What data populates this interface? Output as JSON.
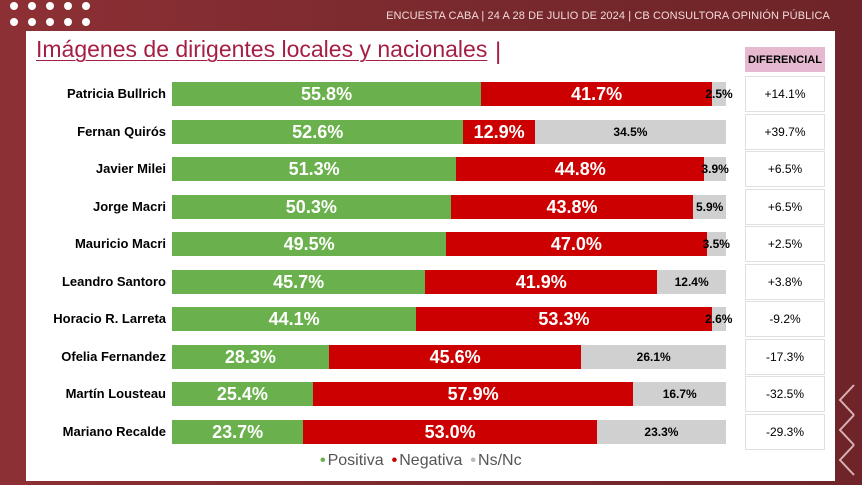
{
  "header": {
    "source": "ENCUESTA CABA  | 24 A 28 DE JULIO DE  2024 | CB CONSULTORA OPINIÓN PÚBLICA"
  },
  "colors": {
    "positiva": "#6ab04c",
    "negativa": "#cc0000",
    "nsnc": "#d0d0d0",
    "title": "#a51f45",
    "diff_header_bg": "#e6b9d0"
  },
  "legend": {
    "positiva": "Positiva",
    "negativa": "Negativa",
    "nsnc": "Ns/Nc"
  },
  "chart_data": {
    "type": "bar",
    "stacked": true,
    "orientation": "horizontal",
    "title": "Imágenes de dirigentes locales y nacionales",
    "categories": [
      "Patricia Bullrich",
      "Fernan Quirós",
      "Javier Milei",
      "Jorge Macri",
      "Mauricio Macri",
      "Leandro Santoro",
      "Horacio R. Larreta",
      "Ofelia Fernandez",
      "Martín Lousteau",
      "Mariano Recalde"
    ],
    "series": [
      {
        "name": "Positiva",
        "values": [
          55.8,
          52.6,
          51.3,
          50.3,
          49.5,
          45.7,
          44.1,
          28.3,
          25.4,
          23.7
        ]
      },
      {
        "name": "Negativa",
        "values": [
          41.7,
          12.9,
          44.8,
          43.8,
          47.0,
          41.9,
          53.3,
          45.6,
          57.9,
          53.0
        ]
      },
      {
        "name": "Ns/Nc",
        "values": [
          2.5,
          34.5,
          3.9,
          5.9,
          3.5,
          12.4,
          2.6,
          26.1,
          16.7,
          23.3
        ]
      }
    ],
    "value_labels": {
      "Positiva": [
        "55.8%",
        "52.6%",
        "51.3%",
        "50.3%",
        "49.5%",
        "45.7%",
        "44.1%",
        "28.3%",
        "25.4%",
        "23.7%"
      ],
      "Negativa": [
        "41.7%",
        "12.9%",
        "44.8%",
        "43.8%",
        "47.0%",
        "41.9%",
        "53.3%",
        "45.6%",
        "57.9%",
        "53.0%"
      ],
      "Ns/Nc": [
        "2.5%",
        "34.5%",
        "3.9%",
        "5.9%",
        "3.5%",
        "12.4%",
        "2.6%",
        "26.1%",
        "16.7%",
        "23.3%"
      ]
    },
    "xlim": [
      0,
      100
    ],
    "legend_position": "bottom",
    "grid": false,
    "diferencial": {
      "header": "DIFERENCIAL",
      "values": [
        "+14.1%",
        "+39.7%",
        "+6.5%",
        "+6.5%",
        "+2.5%",
        "+3.8%",
        "-9.2%",
        "-17.3%",
        "-32.5%",
        "-29.3%"
      ]
    }
  }
}
